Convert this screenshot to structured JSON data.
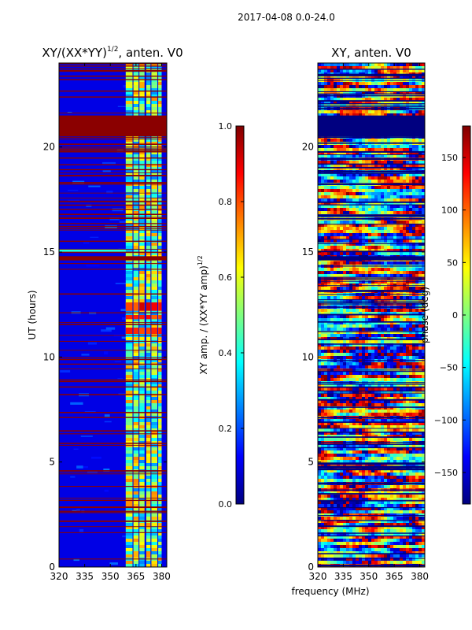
{
  "figure": {
    "suptitle": "2017-04-08 0.0-24.0",
    "shared_xlabel": "frequency (MHz)"
  },
  "colors": {
    "jet": [
      "#00007f",
      "#0000ff",
      "#007fff",
      "#00ffff",
      "#7fff7f",
      "#ffff00",
      "#ff7f00",
      "#ff0000",
      "#7f0000"
    ],
    "flag_red": "#8b0000",
    "flag_navy": "#000080"
  },
  "chart_data": [
    {
      "type": "heatmap",
      "name": "amplitude_ratio",
      "title": "XY/(XX*YY)",
      "title_exponent": "1/2",
      "title_suffix": ", anten. V0",
      "xlabel": "",
      "ylabel": "UT (hours)",
      "xlim": [
        320,
        383
      ],
      "ylim": [
        0,
        24
      ],
      "xticks": [
        320,
        335,
        350,
        365,
        380
      ],
      "yticks": [
        0,
        5,
        10,
        15,
        20
      ],
      "bright_bands_mhz": [
        [
          359,
          363
        ],
        [
          363.5,
          366.5
        ],
        [
          367,
          370
        ],
        [
          371,
          373.5
        ],
        [
          374,
          377.5
        ],
        [
          378,
          380
        ]
      ],
      "flagged_blocks_hours": [
        [
          20.5,
          21.5
        ],
        [
          14.6,
          14.8
        ]
      ],
      "colorbar": {
        "label": "XY amp. / (XX*YY amp)",
        "label_exponent": "1/2",
        "range": [
          0.0,
          1.0
        ],
        "ticks": [
          "0.0",
          "0.2",
          "0.4",
          "0.6",
          "0.8",
          "1.0"
        ]
      }
    },
    {
      "type": "heatmap",
      "name": "phase",
      "title": "XY, anten. V0",
      "xlabel": "frequency (MHz)",
      "ylabel": "",
      "xlim": [
        320,
        383
      ],
      "ylim": [
        0,
        24
      ],
      "xticks": [
        320,
        335,
        350,
        365,
        380
      ],
      "yticks": [
        0,
        5,
        10,
        15,
        20
      ],
      "flagged_blocks_hours": [
        [
          20.5,
          21.5
        ],
        [
          14.6,
          14.8
        ]
      ],
      "colorbar": {
        "label": "phase (deg)",
        "range": [
          -180,
          180
        ],
        "ticks": [
          "150",
          "100",
          "50",
          "0",
          "−50",
          "−100",
          "−150"
        ]
      }
    }
  ]
}
